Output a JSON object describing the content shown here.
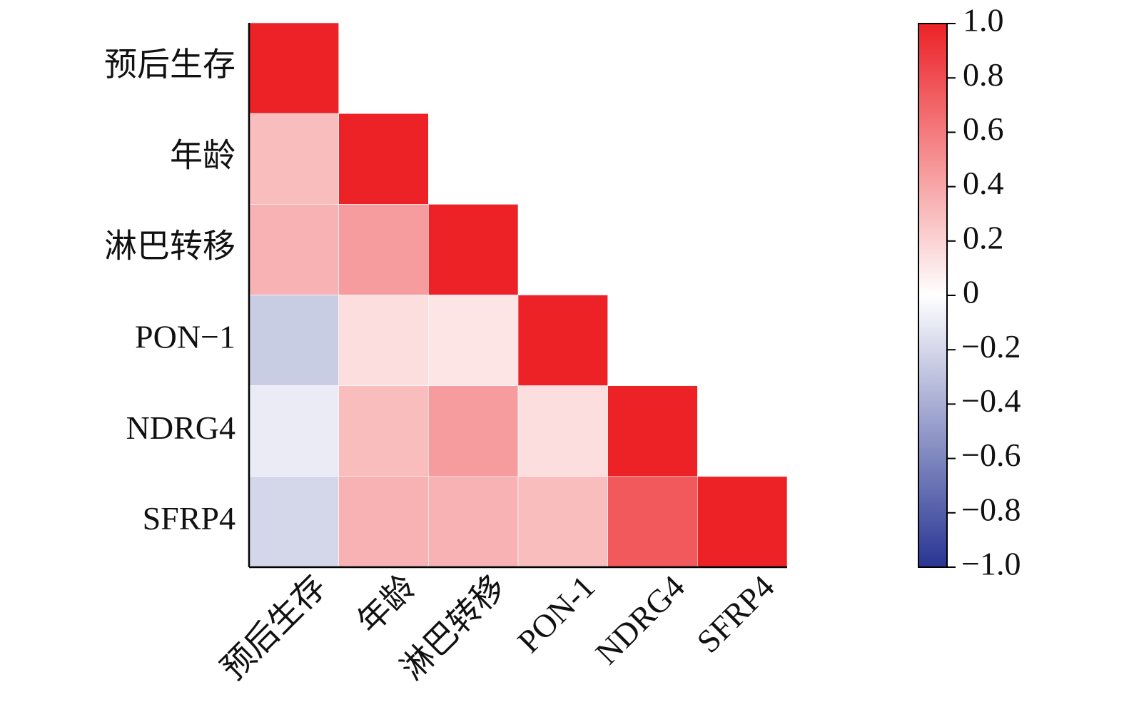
{
  "chart_data": {
    "type": "heatmap",
    "x_categories": [
      "预后生存",
      "年龄",
      "淋巴转移",
      "PON-1",
      "NDRG4",
      "SFRP4"
    ],
    "y_categories": [
      "预后生存",
      "年龄",
      "淋巴转移",
      "PON−1",
      "NDRG4",
      "SFRP4"
    ],
    "values": [
      [
        1,
        null,
        null,
        null,
        null,
        null
      ],
      [
        0.3,
        1,
        null,
        null,
        null,
        null
      ],
      [
        0.35,
        0.45,
        1,
        null,
        null,
        null
      ],
      [
        -0.25,
        0.15,
        0.12,
        1,
        null,
        null
      ],
      [
        -0.1,
        0.3,
        0.45,
        0.15,
        1,
        null
      ],
      [
        -0.2,
        0.35,
        0.35,
        0.3,
        0.75,
        1
      ]
    ],
    "clim": [
      -1,
      1
    ],
    "colors": [
      "#283593",
      "#ffffff",
      "#ec2227"
    ],
    "cticks": [
      {
        "value": 1,
        "label": "1.0"
      },
      0.8,
      0.6,
      0.4,
      0.2,
      0,
      {
        "value": -0.2,
        "label": "−0.2"
      },
      {
        "value": -0.4,
        "label": "−0.4"
      },
      {
        "value": -0.6,
        "label": "−0.6"
      },
      {
        "value": -0.8,
        "label": "−0.8"
      },
      {
        "value": -1,
        "label": "−1.0"
      }
    ]
  }
}
